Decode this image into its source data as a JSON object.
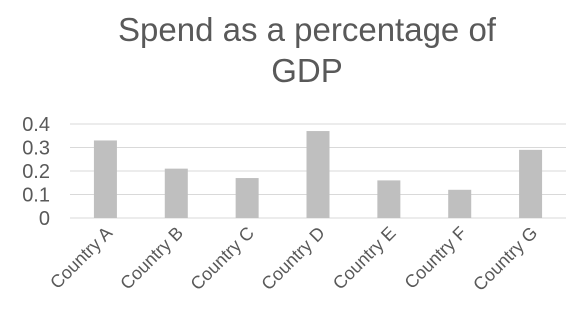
{
  "chart_data": {
    "type": "bar",
    "title": "Spend as a percentage of GDP",
    "title_lines": [
      "Spend as a percentage of",
      "GDP"
    ],
    "categories": [
      "Country A",
      "Country B",
      "Country C",
      "Country D",
      "Country E",
      "Country F",
      "Country G"
    ],
    "values": [
      0.33,
      0.21,
      0.17,
      0.37,
      0.16,
      0.12,
      0.29
    ],
    "yticks": [
      "0",
      "0.1",
      "0.2",
      "0.3",
      "0.4"
    ],
    "ylim": [
      0,
      0.4
    ],
    "grid": true,
    "legend": "none",
    "bar_color": "#bfbfbf",
    "grid_color": "#d9d9d9",
    "text_color": "#595959"
  }
}
